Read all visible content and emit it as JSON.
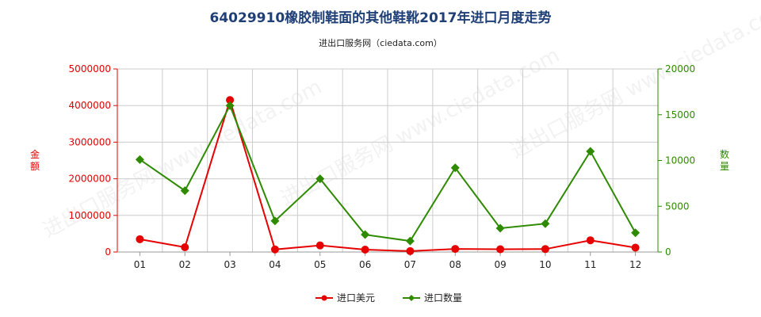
{
  "title": "64029910橡胶制鞋面的其他鞋靴2017年进口月度走势",
  "subtitle": "进出口服务网（ciedata.com）",
  "watermark": "进出口服务网 www.ciedata.com",
  "colors": {
    "left_axis": "#e60000",
    "right_axis": "#2e8b00",
    "grid": "#cccccc",
    "title": "#1f3f77"
  },
  "chart_data": {
    "type": "line",
    "categories": [
      "01",
      "02",
      "03",
      "04",
      "05",
      "06",
      "07",
      "08",
      "09",
      "10",
      "11",
      "12"
    ],
    "y_left": {
      "label": "金额",
      "ylim": [
        0,
        5000000
      ],
      "ticks": [
        "0",
        "1000000",
        "2000000",
        "3000000",
        "4000000",
        "5000000"
      ]
    },
    "y_right": {
      "label": "数量",
      "ylim": [
        0,
        20000
      ],
      "ticks": [
        "0",
        "5000",
        "10000",
        "15000",
        "20000"
      ]
    },
    "series": [
      {
        "name": "进口美元",
        "axis": "left",
        "color": "#e60000",
        "marker": "circle",
        "values": [
          350000,
          130000,
          4150000,
          70000,
          180000,
          65000,
          25000,
          85000,
          75000,
          80000,
          320000,
          120000
        ]
      },
      {
        "name": "进口数量",
        "axis": "right",
        "color": "#2e8b00",
        "marker": "diamond",
        "values": [
          10100,
          6700,
          16000,
          3400,
          8000,
          1900,
          1200,
          9200,
          2600,
          3100,
          11000,
          2100
        ]
      }
    ],
    "grid": true,
    "legend_position": "bottom-center"
  }
}
